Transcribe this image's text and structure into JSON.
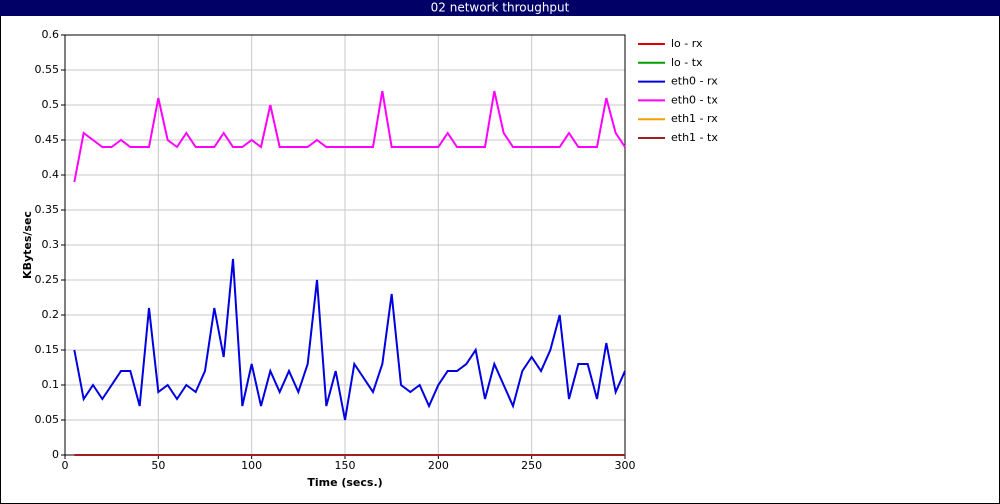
{
  "chart_data": {
    "type": "line",
    "title": "02 network throughput",
    "xlabel": "Time (secs.)",
    "ylabel": "KBytes/sec",
    "x": [
      5,
      10,
      15,
      20,
      25,
      30,
      35,
      40,
      45,
      50,
      55,
      60,
      65,
      70,
      75,
      80,
      85,
      90,
      95,
      100,
      105,
      110,
      115,
      120,
      125,
      130,
      135,
      140,
      145,
      150,
      155,
      160,
      165,
      170,
      175,
      180,
      185,
      190,
      195,
      200,
      205,
      210,
      215,
      220,
      225,
      230,
      235,
      240,
      245,
      250,
      255,
      260,
      265,
      270,
      275,
      280,
      285,
      290,
      295,
      300
    ],
    "series": [
      {
        "name": "lo - rx",
        "color": "#e00000",
        "values": [
          0,
          0,
          0,
          0,
          0,
          0,
          0,
          0,
          0,
          0,
          0,
          0,
          0,
          0,
          0,
          0,
          0,
          0,
          0,
          0,
          0,
          0,
          0,
          0,
          0,
          0,
          0,
          0,
          0,
          0,
          0,
          0,
          0,
          0,
          0,
          0,
          0,
          0,
          0,
          0,
          0,
          0,
          0,
          0,
          0,
          0,
          0,
          0,
          0,
          0,
          0,
          0,
          0,
          0,
          0,
          0,
          0,
          0,
          0,
          0
        ]
      },
      {
        "name": "lo - tx",
        "color": "#00a000",
        "values": [
          0,
          0,
          0,
          0,
          0,
          0,
          0,
          0,
          0,
          0,
          0,
          0,
          0,
          0,
          0,
          0,
          0,
          0,
          0,
          0,
          0,
          0,
          0,
          0,
          0,
          0,
          0,
          0,
          0,
          0,
          0,
          0,
          0,
          0,
          0,
          0,
          0,
          0,
          0,
          0,
          0,
          0,
          0,
          0,
          0,
          0,
          0,
          0,
          0,
          0,
          0,
          0,
          0,
          0,
          0,
          0,
          0,
          0,
          0,
          0
        ]
      },
      {
        "name": "eth0 - rx",
        "color": "#0000e0",
        "values": [
          0.15,
          0.08,
          0.1,
          0.08,
          0.1,
          0.12,
          0.12,
          0.07,
          0.21,
          0.09,
          0.1,
          0.08,
          0.1,
          0.09,
          0.12,
          0.21,
          0.14,
          0.28,
          0.07,
          0.13,
          0.07,
          0.12,
          0.09,
          0.12,
          0.09,
          0.13,
          0.25,
          0.07,
          0.12,
          0.05,
          0.13,
          0.11,
          0.09,
          0.13,
          0.23,
          0.1,
          0.09,
          0.1,
          0.07,
          0.1,
          0.12,
          0.12,
          0.13,
          0.15,
          0.08,
          0.13,
          0.1,
          0.07,
          0.12,
          0.14,
          0.12,
          0.15,
          0.2,
          0.08,
          0.13,
          0.13,
          0.08,
          0.16,
          0.09,
          0.12
        ]
      },
      {
        "name": "eth0 - tx",
        "color": "#ff00ff",
        "values": [
          0.39,
          0.46,
          0.45,
          0.44,
          0.44,
          0.45,
          0.44,
          0.44,
          0.44,
          0.51,
          0.45,
          0.44,
          0.46,
          0.44,
          0.44,
          0.44,
          0.46,
          0.44,
          0.44,
          0.45,
          0.44,
          0.5,
          0.44,
          0.44,
          0.44,
          0.44,
          0.45,
          0.44,
          0.44,
          0.44,
          0.44,
          0.44,
          0.44,
          0.52,
          0.44,
          0.44,
          0.44,
          0.44,
          0.44,
          0.44,
          0.46,
          0.44,
          0.44,
          0.44,
          0.44,
          0.52,
          0.46,
          0.44,
          0.44,
          0.44,
          0.44,
          0.44,
          0.44,
          0.46,
          0.44,
          0.44,
          0.44,
          0.51,
          0.46,
          0.44
        ]
      },
      {
        "name": "eth1 - rx",
        "color": "#f0a000",
        "values": [
          0,
          0,
          0,
          0,
          0,
          0,
          0,
          0,
          0,
          0,
          0,
          0,
          0,
          0,
          0,
          0,
          0,
          0,
          0,
          0,
          0,
          0,
          0,
          0,
          0,
          0,
          0,
          0,
          0,
          0,
          0,
          0,
          0,
          0,
          0,
          0,
          0,
          0,
          0,
          0,
          0,
          0,
          0,
          0,
          0,
          0,
          0,
          0,
          0,
          0,
          0,
          0,
          0,
          0,
          0,
          0,
          0,
          0,
          0,
          0
        ]
      },
      {
        "name": "eth1 - tx",
        "color": "#a02020",
        "values": [
          0,
          0,
          0,
          0,
          0,
          0,
          0,
          0,
          0,
          0,
          0,
          0,
          0,
          0,
          0,
          0,
          0,
          0,
          0,
          0,
          0,
          0,
          0,
          0,
          0,
          0,
          0,
          0,
          0,
          0,
          0,
          0,
          0,
          0,
          0,
          0,
          0,
          0,
          0,
          0,
          0,
          0,
          0,
          0,
          0,
          0,
          0,
          0,
          0,
          0,
          0,
          0,
          0,
          0,
          0,
          0,
          0,
          0,
          0,
          0
        ]
      }
    ],
    "xlim": [
      0,
      300
    ],
    "xticks": [
      0,
      50,
      100,
      150,
      200,
      250,
      300
    ],
    "ylim": [
      0,
      0.6
    ],
    "yticks": [
      0,
      0.05,
      0.1,
      0.15,
      0.2,
      0.25,
      0.3,
      0.35,
      0.4,
      0.45,
      0.5,
      0.55,
      0.6
    ],
    "grid": true
  }
}
